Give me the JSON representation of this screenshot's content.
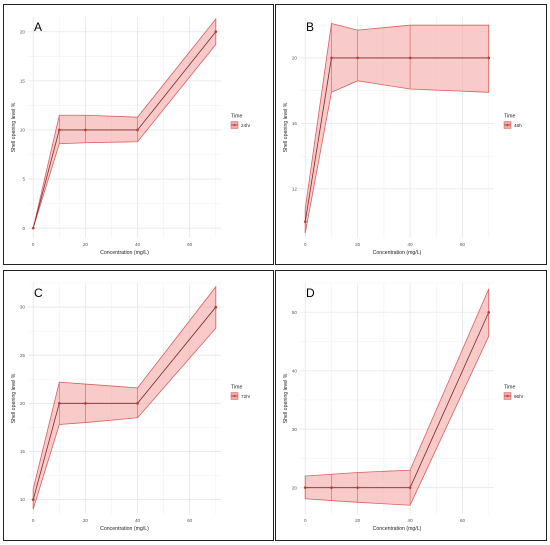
{
  "colors": {
    "ribbon_fill": "#f4a7a7",
    "ribbon_stroke": "#d96060",
    "line": "#c0392b",
    "grid": "#e6e6e6"
  },
  "chart_data": [
    {
      "type": "line",
      "panel_label": "A",
      "x": [
        0,
        10,
        20,
        40,
        70
      ],
      "series": [
        {
          "name": "24hr",
          "values": [
            0,
            10,
            10,
            10,
            20
          ],
          "lower": [
            0,
            8.6,
            8.7,
            8.8,
            18.7
          ],
          "upper": [
            0,
            11.5,
            11.5,
            11.3,
            21.3
          ]
        }
      ],
      "xlabel": "Concentration (mg/L)",
      "ylabel": "Shell opening level %",
      "xlim": [
        -2,
        72
      ],
      "ylim": [
        -1,
        21.5
      ],
      "xticks": [
        0,
        20,
        40,
        60
      ],
      "yticks": [
        0,
        5,
        10,
        15,
        20
      ],
      "legend_title": "Time",
      "legend_position": "right"
    },
    {
      "type": "line",
      "panel_label": "B",
      "x": [
        0,
        10,
        20,
        40,
        70
      ],
      "series": [
        {
          "name": "48h",
          "values": [
            10,
            20,
            20,
            20,
            20
          ],
          "lower": [
            9.3,
            17.9,
            18.6,
            18.1,
            17.9
          ],
          "upper": [
            10.8,
            22.1,
            21.7,
            22.0,
            22.0
          ]
        }
      ],
      "xlabel": "Concentration (mg/L)",
      "ylabel": "Shell opening level %",
      "xlim": [
        -2,
        72
      ],
      "ylim": [
        9,
        22.5
      ],
      "xticks": [
        0,
        20,
        40,
        60
      ],
      "yticks": [
        12,
        16,
        20
      ],
      "legend_title": "Time",
      "legend_position": "right"
    },
    {
      "type": "line",
      "panel_label": "C",
      "x": [
        0,
        10,
        20,
        40,
        70
      ],
      "series": [
        {
          "name": "72hr",
          "values": [
            10,
            20,
            20,
            20,
            30
          ],
          "lower": [
            9.0,
            17.8,
            18.0,
            18.5,
            27.8
          ],
          "upper": [
            11.1,
            22.2,
            22.0,
            21.6,
            32.1
          ]
        }
      ],
      "xlabel": "Concentration (mg/L)",
      "ylabel": "Shell opening level %",
      "xlim": [
        -2,
        72
      ],
      "ylim": [
        8.5,
        32.5
      ],
      "xticks": [
        0,
        20,
        40,
        60
      ],
      "yticks": [
        10,
        15,
        20,
        25,
        30
      ],
      "legend_title": "Time",
      "legend_position": "right"
    },
    {
      "type": "line",
      "panel_label": "D",
      "x": [
        0,
        10,
        20,
        40,
        70
      ],
      "series": [
        {
          "name": "96hr",
          "values": [
            20,
            20,
            20,
            20,
            50
          ],
          "lower": [
            18.1,
            17.8,
            17.5,
            17.0,
            45.9
          ],
          "upper": [
            22.0,
            22.3,
            22.6,
            23.0,
            54.0
          ]
        }
      ],
      "xlabel": "Concentration (mg/L)",
      "ylabel": "Shell opening level %",
      "xlim": [
        -2,
        72
      ],
      "ylim": [
        15.5,
        55
      ],
      "xticks": [
        0,
        20,
        40,
        60
      ],
      "yticks": [
        20,
        30,
        40,
        50
      ],
      "legend_title": "Time",
      "legend_position": "right"
    }
  ]
}
